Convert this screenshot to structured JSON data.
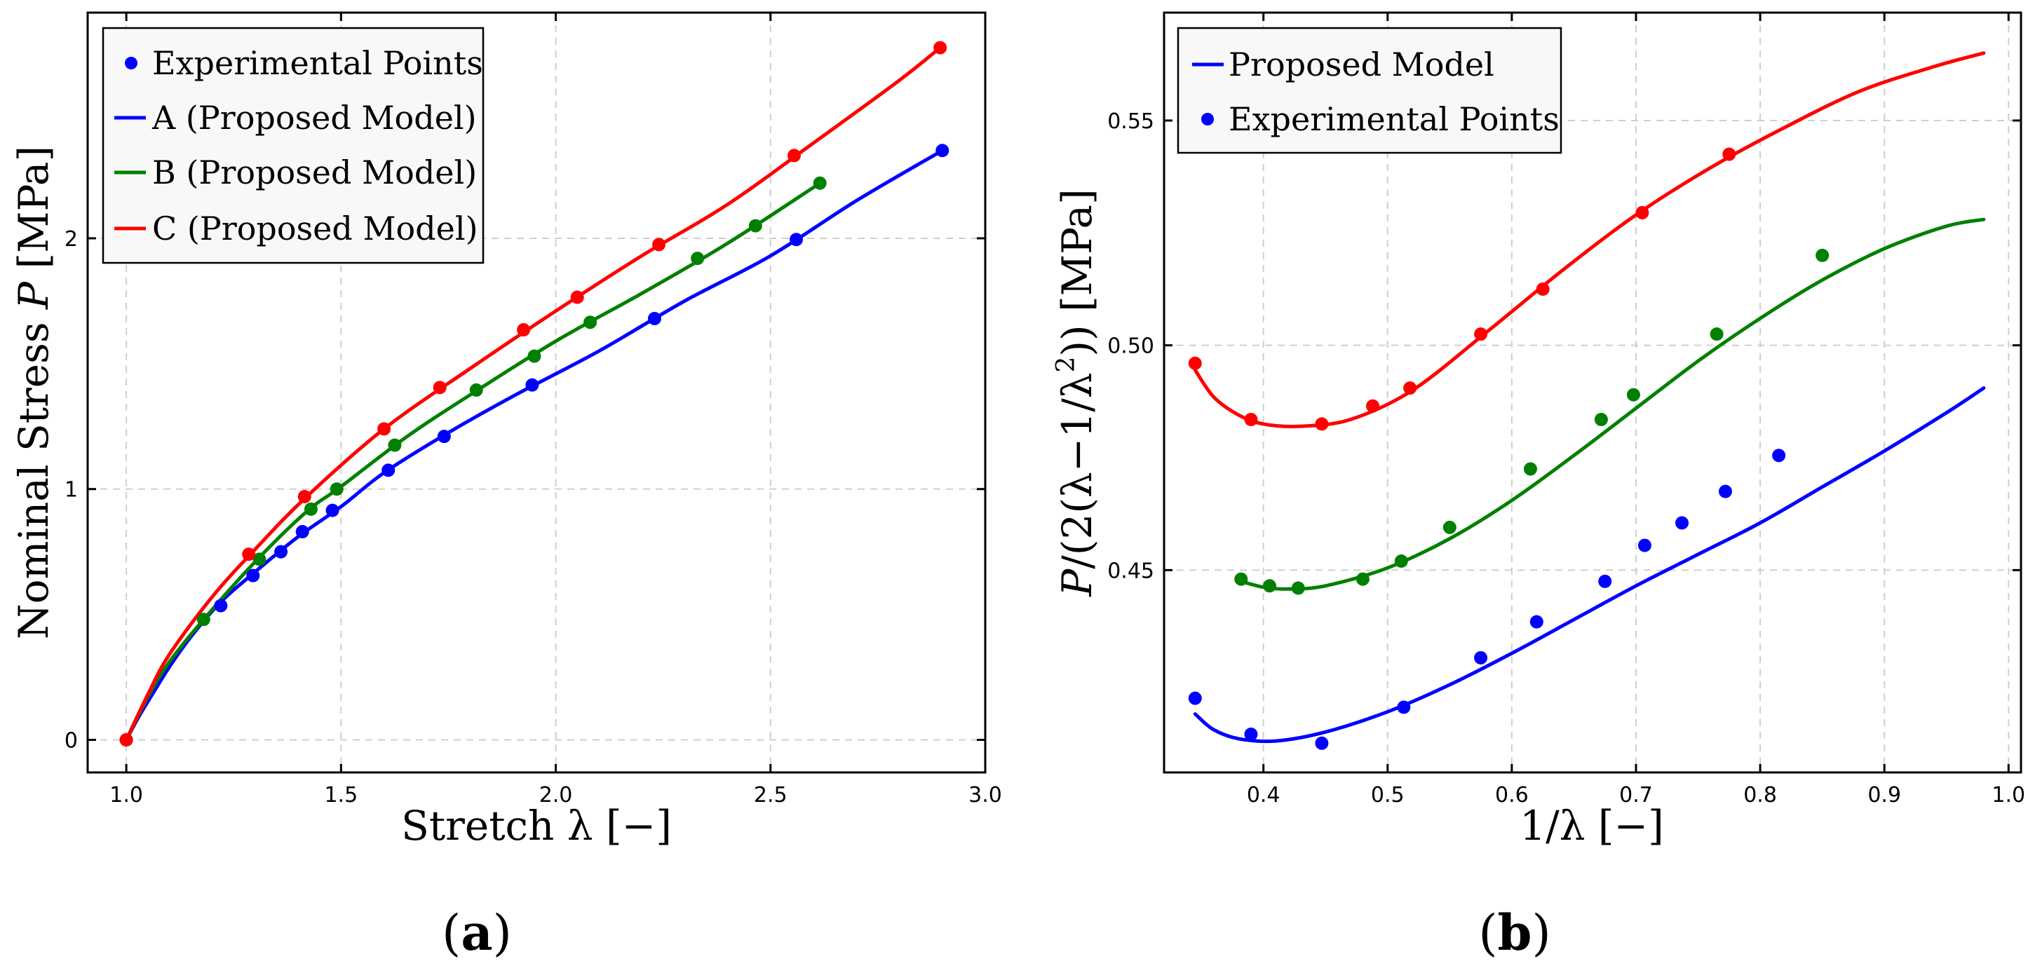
{
  "chart_data": [
    {
      "type": "line",
      "panel_label_open": "(",
      "panel_label_letter": "a",
      "panel_label_close": ")",
      "title": "",
      "xlabel": "Stretch λ [−]",
      "ylabel": "Nominal Stress P [MPa]",
      "ylabel_parts": {
        "pre": "Nominal Stress ",
        "italic": "P",
        "post": " [MPa]"
      },
      "xlim": [
        0.91,
        3.0
      ],
      "ylim": [
        -0.13,
        2.9
      ],
      "xticks": [
        1.0,
        1.5,
        2.0,
        2.5,
        3.0
      ],
      "xtick_labels": [
        "1.0",
        "1.5",
        "2.0",
        "2.5",
        "3.0"
      ],
      "yticks": [
        0,
        1,
        2
      ],
      "ytick_labels": [
        "0",
        "1",
        "2"
      ],
      "grid": true,
      "legend_position": "top-left",
      "legend": [
        {
          "label": "Experimental Points",
          "kind": "marker",
          "color": "#0000ff"
        },
        {
          "label": "A (Proposed Model)",
          "kind": "line",
          "color": "#0000ff"
        },
        {
          "label": "B (Proposed Model)",
          "kind": "line",
          "color": "#008000"
        },
        {
          "label": "C (Proposed Model)",
          "kind": "line",
          "color": "#ff0000"
        }
      ],
      "series": [
        {
          "name": "A (Proposed Model)",
          "color": "#0000ff",
          "points_x": [
            1.0,
            1.22,
            1.295,
            1.36,
            1.41,
            1.48,
            1.61,
            1.74,
            1.945,
            2.23,
            2.56,
            2.9
          ],
          "points_y": [
            0.0,
            0.535,
            0.655,
            0.75,
            0.83,
            0.915,
            1.075,
            1.21,
            1.415,
            1.68,
            1.995,
            2.35
          ],
          "curve_x": [
            1.0,
            1.03,
            1.06,
            1.1,
            1.15,
            1.22,
            1.3,
            1.4,
            1.5,
            1.6,
            1.75,
            1.9,
            2.1,
            2.3,
            2.5,
            2.7,
            2.9
          ],
          "curve_y": [
            0.0,
            0.095,
            0.18,
            0.29,
            0.41,
            0.55,
            0.67,
            0.81,
            0.93,
            1.065,
            1.225,
            1.37,
            1.55,
            1.75,
            1.93,
            2.15,
            2.35
          ]
        },
        {
          "name": "B (Proposed Model)",
          "color": "#008000",
          "points_x": [
            1.0,
            1.18,
            1.31,
            1.43,
            1.49,
            1.625,
            1.815,
            1.95,
            2.08,
            2.33,
            2.465,
            2.615
          ],
          "points_y": [
            0.0,
            0.48,
            0.72,
            0.92,
            1.0,
            1.175,
            1.395,
            1.53,
            1.665,
            1.92,
            2.05,
            2.22
          ],
          "curve_x": [
            1.0,
            1.05,
            1.1,
            1.18,
            1.3,
            1.42,
            1.5,
            1.65,
            1.8,
            2.0,
            2.2,
            2.4,
            2.615
          ],
          "curve_y": [
            0.0,
            0.17,
            0.31,
            0.48,
            0.71,
            0.91,
            1.01,
            1.205,
            1.375,
            1.59,
            1.78,
            1.98,
            2.22
          ]
        },
        {
          "name": "C (Proposed Model)",
          "color": "#ff0000",
          "points_x": [
            1.0,
            1.285,
            1.415,
            1.6,
            1.73,
            1.925,
            2.05,
            2.24,
            2.555,
            2.895
          ],
          "points_y": [
            0.0,
            0.74,
            0.97,
            1.24,
            1.405,
            1.635,
            1.765,
            1.975,
            2.33,
            2.76
          ],
          "curve_x": [
            1.0,
            1.05,
            1.1,
            1.2,
            1.3,
            1.42,
            1.6,
            1.8,
            2.0,
            2.2,
            2.4,
            2.6,
            2.8,
            2.895
          ],
          "curve_y": [
            0.0,
            0.18,
            0.34,
            0.57,
            0.76,
            0.97,
            1.24,
            1.48,
            1.71,
            1.93,
            2.135,
            2.38,
            2.63,
            2.76
          ]
        }
      ]
    },
    {
      "type": "line",
      "panel_label_open": "(",
      "panel_label_letter": "b",
      "panel_label_close": ")",
      "title": "",
      "xlabel": "1/λ [−]",
      "ylabel": "P/(2(λ−1/λ²)) [MPa]",
      "ylabel_parts": {
        "italic": "P",
        "post_a": "/(2(λ−1/λ",
        "sup": "2",
        "post_b": ")) [MPa]"
      },
      "xlim": [
        0.32,
        1.01
      ],
      "ylim": [
        0.405,
        0.574
      ],
      "xticks": [
        0.4,
        0.5,
        0.6,
        0.7,
        0.8,
        0.9,
        1.0
      ],
      "xtick_labels": [
        "0.4",
        "0.5",
        "0.6",
        "0.7",
        "0.8",
        "0.9",
        "1.0"
      ],
      "yticks": [
        0.45,
        0.5,
        0.55
      ],
      "ytick_labels": [
        "0.45",
        "0.50",
        "0.55"
      ],
      "grid": true,
      "legend_position": "top-left",
      "legend": [
        {
          "label": "Proposed Model",
          "kind": "line",
          "color": "#0000ff"
        },
        {
          "label": "Experimental Points",
          "kind": "marker",
          "color": "#0000ff"
        }
      ],
      "series": [
        {
          "name": "A",
          "color": "#0000ff",
          "points_x": [
            0.345,
            0.39,
            0.447,
            0.513,
            0.575,
            0.62,
            0.675,
            0.707,
            0.737,
            0.772,
            0.815
          ],
          "points_y": [
            0.4215,
            0.4135,
            0.4115,
            0.4195,
            0.4305,
            0.4385,
            0.4475,
            0.4555,
            0.4605,
            0.4675,
            0.4755
          ],
          "curve_x": [
            0.345,
            0.36,
            0.38,
            0.41,
            0.45,
            0.5,
            0.55,
            0.6,
            0.65,
            0.7,
            0.75,
            0.8,
            0.85,
            0.9,
            0.95,
            0.98
          ],
          "curve_y": [
            0.418,
            0.4145,
            0.4125,
            0.412,
            0.414,
            0.4185,
            0.4245,
            0.4315,
            0.439,
            0.4465,
            0.4535,
            0.4605,
            0.4685,
            0.4765,
            0.485,
            0.4905
          ]
        },
        {
          "name": "B",
          "color": "#008000",
          "points_x": [
            0.382,
            0.405,
            0.428,
            0.48,
            0.511,
            0.55,
            0.615,
            0.672,
            0.698,
            0.765,
            0.85
          ],
          "points_y": [
            0.448,
            0.4465,
            0.446,
            0.448,
            0.452,
            0.4595,
            0.4725,
            0.4835,
            0.489,
            0.5025,
            0.52
          ],
          "curve_x": [
            0.382,
            0.4,
            0.42,
            0.45,
            0.5,
            0.55,
            0.6,
            0.65,
            0.7,
            0.75,
            0.8,
            0.85,
            0.9,
            0.95,
            0.98
          ],
          "curve_y": [
            0.4475,
            0.4462,
            0.4458,
            0.4465,
            0.4505,
            0.457,
            0.4655,
            0.4755,
            0.486,
            0.4965,
            0.506,
            0.5145,
            0.5215,
            0.5265,
            0.528
          ]
        },
        {
          "name": "C",
          "color": "#ff0000",
          "points_x": [
            0.345,
            0.39,
            0.447,
            0.488,
            0.518,
            0.575,
            0.625,
            0.705,
            0.775
          ],
          "points_y": [
            0.496,
            0.4835,
            0.4825,
            0.4865,
            0.4905,
            0.5025,
            0.5125,
            0.5295,
            0.5425
          ],
          "curve_x": [
            0.345,
            0.36,
            0.38,
            0.4,
            0.43,
            0.47,
            0.52,
            0.58,
            0.64,
            0.7,
            0.76,
            0.82,
            0.88,
            0.94,
            0.98
          ],
          "curve_y": [
            0.4945,
            0.4885,
            0.4845,
            0.4825,
            0.482,
            0.4835,
            0.49,
            0.503,
            0.5165,
            0.529,
            0.5395,
            0.5485,
            0.5565,
            0.562,
            0.565
          ]
        }
      ]
    }
  ]
}
